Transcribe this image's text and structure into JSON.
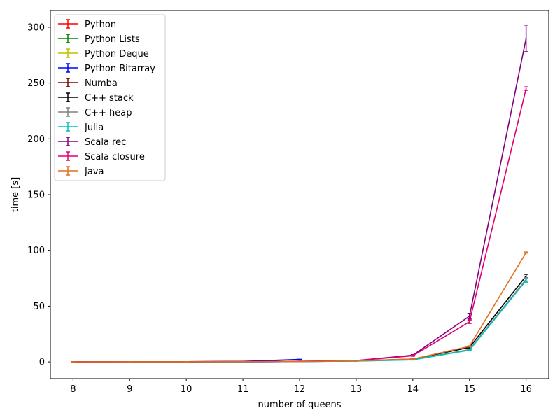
{
  "chart_data": {
    "type": "line",
    "xlabel": "number of queens",
    "ylabel": "time [s]",
    "xlim": [
      7.6,
      16.4
    ],
    "ylim": [
      -15,
      315
    ],
    "x_ticks": [
      8,
      9,
      10,
      11,
      12,
      13,
      14,
      15,
      16
    ],
    "y_ticks": [
      0,
      50,
      100,
      150,
      200,
      250,
      300
    ],
    "grid": false,
    "legend_position": "top-left",
    "series": [
      {
        "name": "Python",
        "color": "#ff0000",
        "x": [
          8
        ],
        "y": [
          0.1
        ],
        "err": [
          0.05
        ]
      },
      {
        "name": "Python Lists",
        "color": "#008000",
        "x": [
          8
        ],
        "y": [
          0.1
        ],
        "err": [
          0.05
        ]
      },
      {
        "name": "Python Deque",
        "color": "#bfbf00",
        "x": [
          8
        ],
        "y": [
          0.1
        ],
        "err": [
          0.05
        ]
      },
      {
        "name": "Python Bitarray",
        "color": "#0000ff",
        "x": [
          8,
          9,
          10,
          11,
          12
        ],
        "y": [
          0.02,
          0.05,
          0.2,
          0.5,
          2.2
        ],
        "err": [
          0.01,
          0.01,
          0.02,
          0.05,
          0.1
        ]
      },
      {
        "name": "Numba",
        "color": "#800000",
        "x": [
          8,
          9,
          10,
          11,
          12
        ],
        "y": [
          0.01,
          0.02,
          0.05,
          0.15,
          0.4
        ],
        "err": [
          0.01,
          0.01,
          0.01,
          0.02,
          0.05
        ]
      },
      {
        "name": "C++ stack",
        "color": "#000000",
        "x": [
          8,
          9,
          10,
          11,
          12,
          13,
          14,
          15,
          16
        ],
        "y": [
          0.01,
          0.02,
          0.05,
          0.1,
          0.3,
          0.9,
          2.5,
          13,
          77
        ],
        "err": [
          0.01,
          0.01,
          0.01,
          0.01,
          0.02,
          0.05,
          0.1,
          0.5,
          1.5
        ]
      },
      {
        "name": "C++ heap",
        "color": "#808080",
        "x": [
          8,
          9,
          10,
          11,
          12,
          13,
          14,
          15,
          16
        ],
        "y": [
          0.01,
          0.02,
          0.05,
          0.1,
          0.3,
          0.8,
          2,
          11,
          74
        ],
        "err": [
          0.01,
          0.01,
          0.01,
          0.01,
          0.02,
          0.05,
          0.1,
          0.5,
          1.5
        ]
      },
      {
        "name": "Julia",
        "color": "#00bfbf",
        "x": [
          8,
          9,
          10,
          11,
          12,
          13,
          14,
          15,
          16
        ],
        "y": [
          0.01,
          0.02,
          0.05,
          0.1,
          0.3,
          0.7,
          1.8,
          10.5,
          73
        ],
        "err": [
          0.01,
          0.01,
          0.01,
          0.01,
          0.02,
          0.05,
          0.1,
          0.5,
          1.5
        ]
      },
      {
        "name": "Scala rec",
        "color": "#800080",
        "x": [
          8,
          9,
          10,
          11,
          12,
          13,
          14,
          15,
          16
        ],
        "y": [
          0.1,
          0.15,
          0.2,
          0.3,
          0.6,
          1.2,
          6,
          41,
          290
        ],
        "err": [
          0.02,
          0.02,
          0.02,
          0.03,
          0.05,
          0.1,
          0.5,
          2.5,
          12
        ]
      },
      {
        "name": "Scala closure",
        "color": "#e0006f",
        "x": [
          8,
          9,
          10,
          11,
          12,
          13,
          14,
          15,
          16
        ],
        "y": [
          0.1,
          0.15,
          0.2,
          0.3,
          0.5,
          1.1,
          5.5,
          36,
          245
        ],
        "err": [
          0.02,
          0.02,
          0.02,
          0.03,
          0.05,
          0.1,
          0.4,
          1.5,
          1.5
        ]
      },
      {
        "name": "Java",
        "color": "#e07020",
        "x": [
          8,
          9,
          10,
          11,
          12,
          13,
          14,
          15,
          16
        ],
        "y": [
          0.05,
          0.08,
          0.12,
          0.2,
          0.4,
          0.9,
          2.5,
          14,
          98
        ],
        "err": [
          0.01,
          0.01,
          0.01,
          0.02,
          0.03,
          0.05,
          0.1,
          0.5,
          0.5
        ]
      }
    ]
  }
}
